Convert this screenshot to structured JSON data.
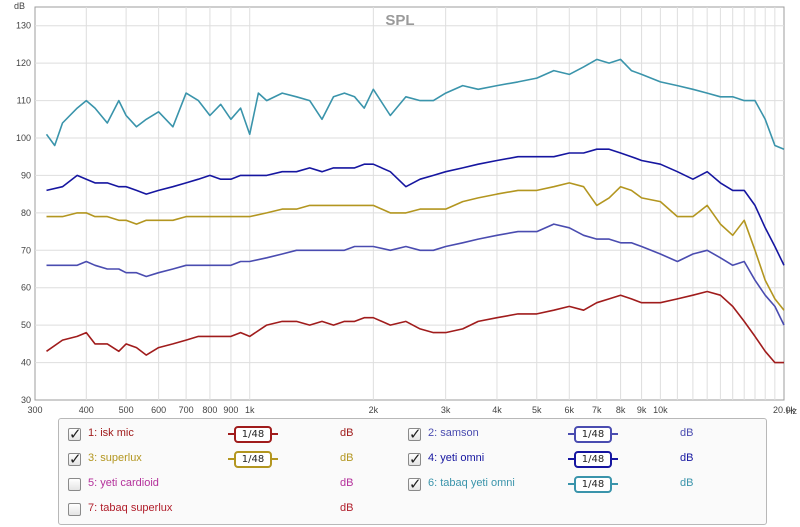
{
  "chart_data": {
    "type": "line",
    "title": "SPL",
    "ylabel": "dB",
    "xunit": "Hz",
    "xscale": "log",
    "xlim": [
      300,
      20000
    ],
    "ylim": [
      30,
      135
    ],
    "grid": true,
    "yticks": [
      30,
      40,
      50,
      60,
      70,
      80,
      90,
      100,
      110,
      120,
      130
    ],
    "xticks": [
      {
        "v": 300,
        "label": "300"
      },
      {
        "v": 400,
        "label": "400"
      },
      {
        "v": 500,
        "label": "500"
      },
      {
        "v": 600,
        "label": "600"
      },
      {
        "v": 700,
        "label": "700"
      },
      {
        "v": 800,
        "label": "800"
      },
      {
        "v": 900,
        "label": "900"
      },
      {
        "v": 1000,
        "label": "1k"
      },
      {
        "v": 2000,
        "label": "2k"
      },
      {
        "v": 3000,
        "label": "3k"
      },
      {
        "v": 4000,
        "label": "4k"
      },
      {
        "v": 5000,
        "label": "5k"
      },
      {
        "v": 6000,
        "label": "6k"
      },
      {
        "v": 7000,
        "label": "7k"
      },
      {
        "v": 8000,
        "label": "8k"
      },
      {
        "v": 9000,
        "label": "9k"
      },
      {
        "v": 10000,
        "label": "10k"
      },
      {
        "v": 20000,
        "label": "20.0k"
      }
    ],
    "series": [
      {
        "name": "isk mic",
        "color": "#a01c1c",
        "x": [
          320,
          350,
          380,
          400,
          420,
          450,
          480,
          500,
          530,
          560,
          600,
          650,
          700,
          750,
          800,
          850,
          900,
          950,
          1000,
          1100,
          1200,
          1300,
          1400,
          1500,
          1600,
          1700,
          1800,
          1900,
          2000,
          2200,
          2400,
          2600,
          2800,
          3000,
          3300,
          3600,
          4000,
          4500,
          5000,
          5500,
          6000,
          6500,
          7000,
          7500,
          8000,
          8500,
          9000,
          10000,
          11000,
          12000,
          13000,
          14000,
          15000,
          16000,
          17000,
          18000,
          19000,
          20000
        ],
        "y": [
          43,
          46,
          47,
          48,
          45,
          45,
          43,
          45,
          44,
          42,
          44,
          45,
          46,
          47,
          47,
          47,
          47,
          48,
          47,
          50,
          51,
          51,
          50,
          51,
          50,
          51,
          51,
          52,
          52,
          50,
          51,
          49,
          48,
          48,
          49,
          51,
          52,
          53,
          53,
          54,
          55,
          54,
          56,
          57,
          58,
          57,
          56,
          56,
          57,
          58,
          59,
          58,
          55,
          51,
          47,
          43,
          40,
          40
        ]
      },
      {
        "name": "samson",
        "color": "#4a4cb0",
        "x": [
          320,
          350,
          380,
          400,
          420,
          450,
          480,
          500,
          530,
          560,
          600,
          650,
          700,
          750,
          800,
          850,
          900,
          950,
          1000,
          1100,
          1200,
          1300,
          1400,
          1500,
          1600,
          1700,
          1800,
          1900,
          2000,
          2200,
          2400,
          2600,
          2800,
          3000,
          3300,
          3600,
          4000,
          4500,
          5000,
          5500,
          6000,
          6500,
          7000,
          7500,
          8000,
          8500,
          9000,
          10000,
          11000,
          12000,
          13000,
          14000,
          15000,
          16000,
          17000,
          18000,
          19000,
          20000
        ],
        "y": [
          66,
          66,
          66,
          67,
          66,
          65,
          65,
          64,
          64,
          63,
          64,
          65,
          66,
          66,
          66,
          66,
          66,
          67,
          67,
          68,
          69,
          70,
          70,
          70,
          70,
          70,
          71,
          71,
          71,
          70,
          71,
          70,
          70,
          71,
          72,
          73,
          74,
          75,
          75,
          77,
          76,
          74,
          73,
          73,
          72,
          72,
          71,
          69,
          67,
          69,
          70,
          68,
          66,
          67,
          62,
          58,
          55,
          50
        ]
      },
      {
        "name": "superlux",
        "color": "#b39620",
        "x": [
          320,
          350,
          380,
          400,
          420,
          450,
          480,
          500,
          530,
          560,
          600,
          650,
          700,
          750,
          800,
          850,
          900,
          950,
          1000,
          1100,
          1200,
          1300,
          1400,
          1500,
          1600,
          1700,
          1800,
          1900,
          2000,
          2200,
          2400,
          2600,
          2800,
          3000,
          3300,
          3600,
          4000,
          4500,
          5000,
          5500,
          6000,
          6500,
          7000,
          7500,
          8000,
          8500,
          9000,
          10000,
          11000,
          12000,
          13000,
          14000,
          15000,
          16000,
          17000,
          18000,
          19000,
          20000
        ],
        "y": [
          79,
          79,
          80,
          80,
          79,
          79,
          78,
          78,
          77,
          78,
          78,
          78,
          79,
          79,
          79,
          79,
          79,
          79,
          79,
          80,
          81,
          81,
          82,
          82,
          82,
          82,
          82,
          82,
          82,
          80,
          80,
          81,
          81,
          81,
          83,
          84,
          85,
          86,
          86,
          87,
          88,
          87,
          82,
          84,
          87,
          86,
          84,
          83,
          79,
          79,
          82,
          77,
          74,
          78,
          70,
          62,
          57,
          54
        ]
      },
      {
        "name": "yeti omni",
        "color": "#1616a0",
        "x": [
          320,
          350,
          380,
          400,
          420,
          450,
          480,
          500,
          530,
          560,
          600,
          650,
          700,
          750,
          800,
          850,
          900,
          950,
          1000,
          1100,
          1200,
          1300,
          1400,
          1500,
          1600,
          1700,
          1800,
          1900,
          2000,
          2200,
          2400,
          2600,
          2800,
          3000,
          3300,
          3600,
          4000,
          4500,
          5000,
          5500,
          6000,
          6500,
          7000,
          7500,
          8000,
          8500,
          9000,
          10000,
          11000,
          12000,
          13000,
          14000,
          15000,
          16000,
          17000,
          18000,
          19000,
          20000
        ],
        "y": [
          86,
          87,
          90,
          89,
          88,
          88,
          87,
          87,
          86,
          85,
          86,
          87,
          88,
          89,
          90,
          89,
          89,
          90,
          90,
          90,
          91,
          91,
          92,
          91,
          92,
          92,
          92,
          93,
          93,
          91,
          87,
          89,
          90,
          91,
          92,
          93,
          94,
          95,
          95,
          95,
          96,
          96,
          97,
          97,
          96,
          95,
          94,
          93,
          91,
          89,
          91,
          88,
          86,
          86,
          82,
          76,
          71,
          66
        ]
      },
      {
        "name": "tabaq yeti omni",
        "color": "#3a94ab",
        "x": [
          320,
          335,
          350,
          380,
          400,
          420,
          450,
          480,
          500,
          530,
          560,
          600,
          650,
          700,
          750,
          800,
          850,
          900,
          950,
          1000,
          1050,
          1100,
          1200,
          1300,
          1400,
          1500,
          1600,
          1700,
          1800,
          1900,
          2000,
          2200,
          2400,
          2600,
          2800,
          3000,
          3300,
          3600,
          4000,
          4500,
          5000,
          5500,
          6000,
          6500,
          7000,
          7500,
          8000,
          8500,
          9000,
          10000,
          11000,
          12000,
          13000,
          14000,
          15000,
          16000,
          17000,
          18000,
          19000,
          20000
        ],
        "y": [
          101,
          98,
          104,
          108,
          110,
          108,
          104,
          110,
          106,
          103,
          105,
          107,
          103,
          112,
          110,
          106,
          109,
          105,
          108,
          101,
          112,
          110,
          112,
          111,
          110,
          105,
          111,
          112,
          111,
          108,
          113,
          106,
          111,
          110,
          110,
          112,
          114,
          113,
          114,
          115,
          116,
          118,
          117,
          119,
          121,
          120,
          121,
          118,
          117,
          115,
          114,
          113,
          112,
          111,
          111,
          110,
          110,
          105,
          98,
          97
        ]
      }
    ]
  },
  "legend": {
    "unit": "dB",
    "smoothing": "1/48",
    "items": [
      {
        "num": "1:",
        "name": "isk mic",
        "checked": true,
        "show_smoothing": true
      },
      {
        "num": "2:",
        "name": "samson",
        "checked": true,
        "show_smoothing": true
      },
      {
        "num": "3:",
        "name": "superlux",
        "checked": true,
        "show_smoothing": true
      },
      {
        "num": "4:",
        "name": "yeti omni",
        "checked": true,
        "show_smoothing": true
      },
      {
        "num": "5:",
        "name": "yeti cardioid",
        "checked": false,
        "show_smoothing": false
      },
      {
        "num": "6:",
        "name": "tabaq yeti omni",
        "checked": true,
        "show_smoothing": true
      },
      {
        "num": "7:",
        "name": "tabaq superlux",
        "checked": false,
        "show_smoothing": false
      }
    ],
    "colors": [
      "#a01c1c",
      "#4a4cb0",
      "#b39620",
      "#1616a0",
      "#b4309b",
      "#3a94ab",
      "#b01d2a"
    ]
  }
}
